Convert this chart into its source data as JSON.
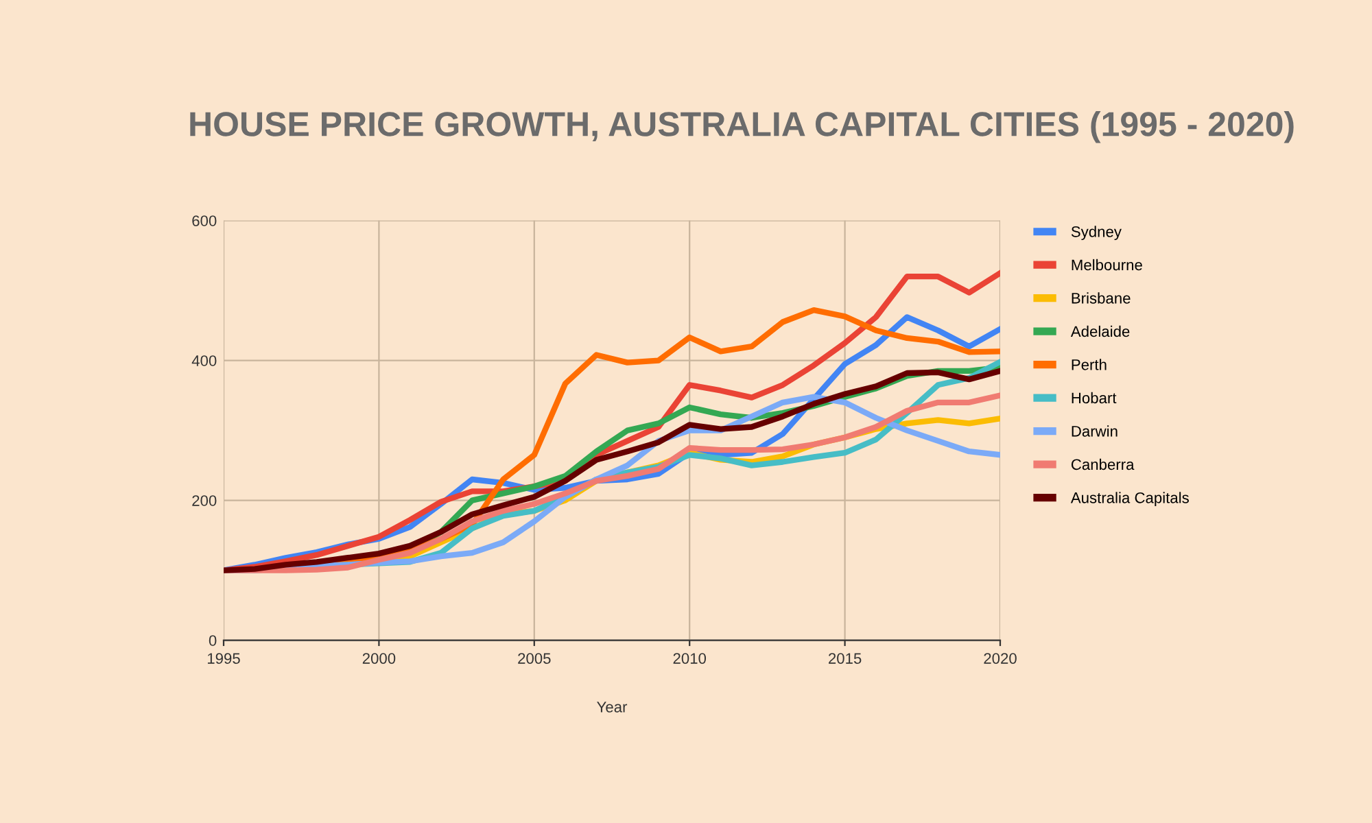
{
  "chart_data": {
    "type": "line",
    "title": "HOUSE PRICE GROWTH, AUSTRALIA CAPITAL CITIES (1995 - 2020)",
    "xlabel": "Year",
    "x": [
      1995,
      1996,
      1997,
      1998,
      1999,
      2000,
      2001,
      2002,
      2003,
      2004,
      2005,
      2006,
      2007,
      2008,
      2009,
      2010,
      2011,
      2012,
      2013,
      2014,
      2015,
      2016,
      2017,
      2018,
      2019,
      2020
    ],
    "series": [
      {
        "name": "Sydney",
        "color": "#4285f4",
        "values": [
          100,
          108,
          118,
          126,
          137,
          145,
          162,
          195,
          230,
          225,
          215,
          218,
          228,
          230,
          238,
          268,
          265,
          268,
          295,
          345,
          395,
          422,
          462,
          443,
          420,
          445
        ]
      },
      {
        "name": "Melbourne",
        "color": "#ea4335",
        "values": [
          100,
          105,
          113,
          122,
          135,
          148,
          172,
          198,
          213,
          213,
          220,
          228,
          265,
          285,
          305,
          365,
          357,
          347,
          365,
          393,
          425,
          462,
          520,
          520,
          497,
          525
        ]
      },
      {
        "name": "Brisbane",
        "color": "#fbbc04",
        "values": [
          null,
          null,
          null,
          null,
          110,
          113,
          120,
          140,
          160,
          180,
          185,
          200,
          228,
          240,
          250,
          268,
          258,
          255,
          263,
          280,
          290,
          302,
          310,
          315,
          310,
          317
        ]
      },
      {
        "name": "Adelaide",
        "color": "#34a853",
        "values": [
          null,
          null,
          null,
          null,
          null,
          null,
          130,
          155,
          200,
          210,
          220,
          235,
          270,
          300,
          310,
          333,
          323,
          318,
          325,
          335,
          348,
          360,
          378,
          385,
          385,
          390
        ]
      },
      {
        "name": "Perth",
        "color": "#ff6d01",
        "values": [
          null,
          null,
          null,
          108,
          112,
          118,
          128,
          145,
          165,
          230,
          265,
          367,
          408,
          397,
          400,
          433,
          413,
          420,
          455,
          472,
          463,
          443,
          432,
          427,
          412,
          413
        ]
      },
      {
        "name": "Hobart",
        "color": "#46bdc6",
        "values": [
          100,
          100,
          103,
          105,
          108,
          110,
          112,
          125,
          160,
          178,
          185,
          205,
          230,
          240,
          248,
          265,
          260,
          250,
          255,
          262,
          268,
          287,
          325,
          365,
          375,
          398
        ]
      },
      {
        "name": "Darwin",
        "color": "#7baaf7",
        "values": [
          100,
          100,
          103,
          106,
          108,
          111,
          113,
          120,
          125,
          140,
          170,
          205,
          230,
          250,
          285,
          300,
          300,
          320,
          340,
          348,
          340,
          318,
          300,
          285,
          270,
          265
        ]
      },
      {
        "name": "Canberra",
        "color": "#f07b72",
        "values": [
          100,
          100,
          100,
          101,
          104,
          115,
          125,
          145,
          170,
          185,
          195,
          210,
          228,
          235,
          245,
          275,
          272,
          272,
          273,
          280,
          290,
          305,
          328,
          340,
          340,
          350
        ]
      },
      {
        "name": "Australia Capitals",
        "color": "#660000",
        "values": [
          100,
          102,
          108,
          112,
          118,
          124,
          135,
          155,
          180,
          193,
          205,
          228,
          258,
          270,
          283,
          308,
          302,
          305,
          320,
          338,
          352,
          363,
          382,
          383,
          373,
          385
        ]
      }
    ],
    "xlim": [
      1995,
      2020
    ],
    "ylim": [
      0,
      600
    ],
    "xticks": [
      1995,
      2000,
      2005,
      2010,
      2015,
      2020
    ],
    "yticks": [
      0,
      200,
      400,
      600
    ],
    "grid": true,
    "legend": "right",
    "marker": "none",
    "line_style": "solid"
  }
}
